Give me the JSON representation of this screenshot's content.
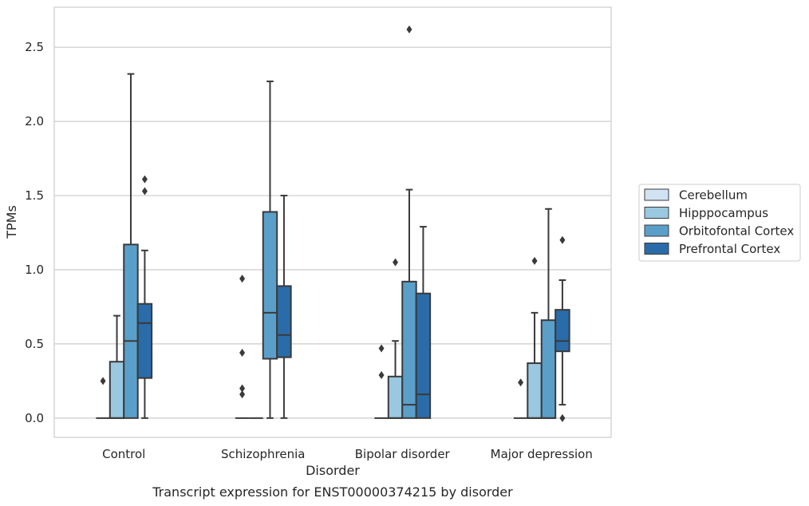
{
  "chart_data": {
    "type": "box",
    "title": "",
    "xlabel": "Disorder",
    "ylabel": "TPMs",
    "caption": "Transcript expression for ENST00000374215 by disorder",
    "ylim": [
      -0.13,
      2.77
    ],
    "yticks": [
      "0.0",
      "0.5",
      "1.0",
      "1.5",
      "2.0",
      "2.5"
    ],
    "ytick_values": [
      0,
      0.5,
      1.0,
      1.5,
      2.0,
      2.5
    ],
    "grid": true,
    "legend_position": "right",
    "categories": [
      "Control",
      "Schizophrenia",
      "Bipolar disorder",
      "Major depression"
    ],
    "series": [
      {
        "name": "Cerebellum",
        "color": "#d1e2f2",
        "boxes": [
          {
            "q1": 0,
            "median": 0,
            "q3": 0,
            "whislo": 0,
            "whishi": 0,
            "fliers": [
              0.25
            ]
          },
          {
            "q1": 0,
            "median": 0,
            "q3": 0,
            "whislo": 0,
            "whishi": 0,
            "fliers": [
              0.16,
              0.2,
              0.44,
              0.94
            ]
          },
          {
            "q1": 0,
            "median": 0,
            "q3": 0,
            "whislo": 0,
            "whishi": 0,
            "fliers": [
              0.29,
              0.47
            ]
          },
          {
            "q1": 0,
            "median": 0,
            "q3": 0,
            "whislo": 0,
            "whishi": 0,
            "fliers": [
              0.24
            ]
          }
        ]
      },
      {
        "name": "Hipppocampus",
        "color": "#9ac8e0",
        "boxes": [
          {
            "q1": 0,
            "median": 0,
            "q3": 0.38,
            "whislo": 0,
            "whishi": 0.69,
            "fliers": []
          },
          {
            "q1": 0,
            "median": 0,
            "q3": 0,
            "whislo": 0,
            "whishi": 0,
            "fliers": []
          },
          {
            "q1": 0,
            "median": 0,
            "q3": 0.28,
            "whislo": 0,
            "whishi": 0.52,
            "fliers": [
              1.05
            ]
          },
          {
            "q1": 0,
            "median": 0,
            "q3": 0.37,
            "whislo": 0,
            "whishi": 0.71,
            "fliers": [
              1.06
            ]
          }
        ]
      },
      {
        "name": "Orbitofontal Cortex",
        "color": "#5a9fc9",
        "boxes": [
          {
            "q1": 0,
            "median": 0.52,
            "q3": 1.17,
            "whislo": 0,
            "whishi": 2.32,
            "fliers": []
          },
          {
            "q1": 0.4,
            "median": 0.71,
            "q3": 1.39,
            "whislo": 0,
            "whishi": 2.27,
            "fliers": []
          },
          {
            "q1": 0,
            "median": 0.09,
            "q3": 0.92,
            "whislo": 0,
            "whishi": 1.54,
            "fliers": [
              2.62
            ]
          },
          {
            "q1": 0,
            "median": 0,
            "q3": 0.66,
            "whislo": 0,
            "whishi": 1.41,
            "fliers": []
          }
        ]
      },
      {
        "name": "Prefrontal Cortex",
        "color": "#2a6ca9",
        "boxes": [
          {
            "q1": 0.27,
            "median": 0.64,
            "q3": 0.77,
            "whislo": 0,
            "whishi": 1.13,
            "fliers": [
              1.53,
              1.61
            ]
          },
          {
            "q1": 0.41,
            "median": 0.56,
            "q3": 0.89,
            "whislo": 0,
            "whishi": 1.5,
            "fliers": []
          },
          {
            "q1": 0,
            "median": 0.16,
            "q3": 0.84,
            "whislo": 0,
            "whishi": 1.29,
            "fliers": []
          },
          {
            "q1": 0.45,
            "median": 0.52,
            "q3": 0.73,
            "whislo": 0.09,
            "whishi": 0.93,
            "fliers": [
              0,
              1.2
            ]
          }
        ]
      }
    ]
  }
}
